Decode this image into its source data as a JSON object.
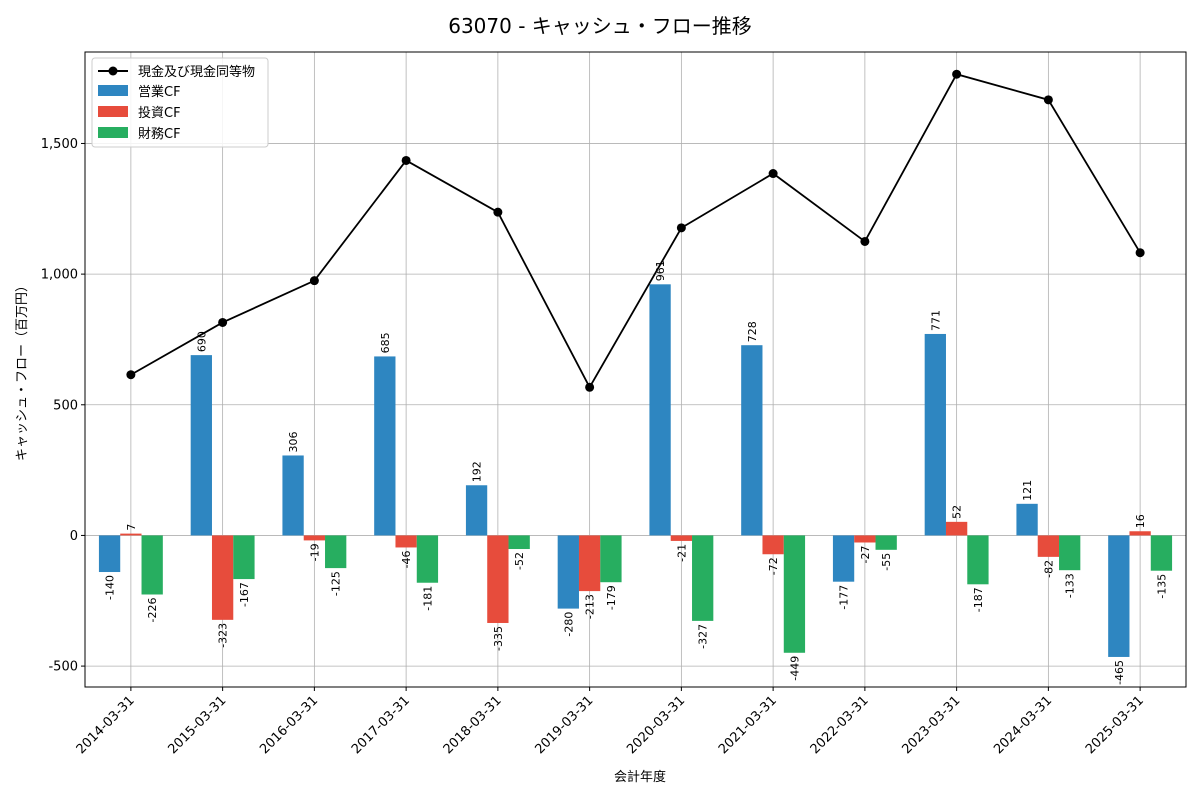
{
  "chart_data": {
    "type": "bar",
    "title": "63070 - キャッシュ・フロー推移",
    "xlabel": "会計年度",
    "ylabel": "キャッシュ・フロー（百万円）",
    "ylim": [
      -580,
      1850
    ],
    "yticks": [
      -500,
      0,
      500,
      1000,
      1500
    ],
    "ytick_labels": [
      "-500",
      "0",
      "500",
      "1,000",
      "1,500"
    ],
    "grid": true,
    "legend_position": "top-left",
    "categories": [
      "2014-03-31",
      "2015-03-31",
      "2016-03-31",
      "2017-03-31",
      "2018-03-31",
      "2019-03-31",
      "2020-03-31",
      "2021-03-31",
      "2022-03-31",
      "2023-03-31",
      "2024-03-31",
      "2025-03-31"
    ],
    "line_series": {
      "name": "現金及び現金同等物",
      "color": "#000000",
      "values": [
        615,
        815,
        975,
        1435,
        1237,
        567,
        1177,
        1385,
        1125,
        1765,
        1667,
        1082
      ]
    },
    "series": [
      {
        "name": "営業CF",
        "color": "#2e86c1",
        "values": [
          -140,
          690,
          306,
          685,
          192,
          -280,
          961,
          728,
          -177,
          771,
          121,
          -465
        ]
      },
      {
        "name": "投資CF",
        "color": "#e74c3c",
        "values": [
          7,
          -323,
          -19,
          -46,
          -335,
          -213,
          -21,
          -72,
          -27,
          52,
          -82,
          16
        ]
      },
      {
        "name": "財務CF",
        "color": "#27ae60",
        "values": [
          -226,
          -167,
          -125,
          -181,
          -52,
          -179,
          -327,
          -449,
          -55,
          -187,
          -133,
          -135
        ]
      }
    ]
  }
}
